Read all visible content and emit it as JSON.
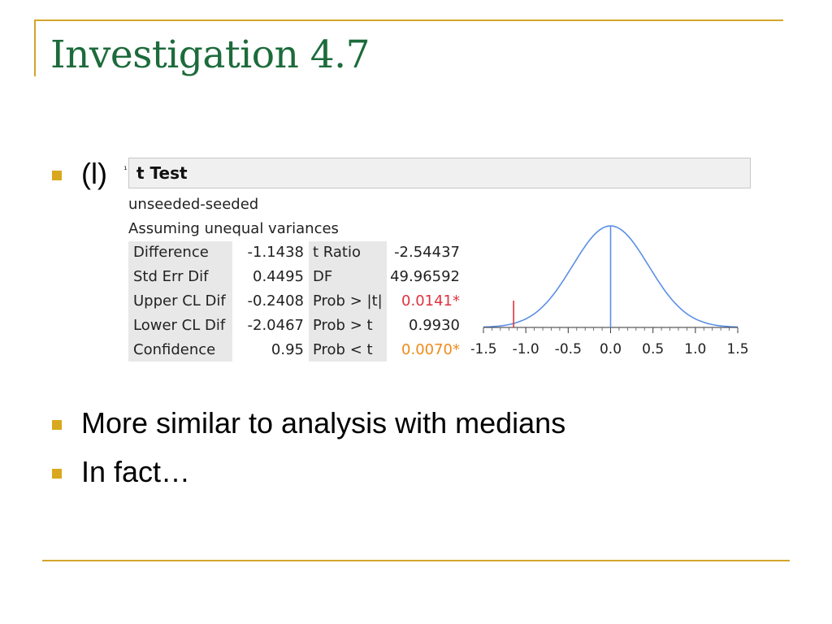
{
  "slide": {
    "title": "Investigation 4.7",
    "bullets": [
      {
        "text": "(l)"
      },
      {
        "text": "More similar to analysis with medians"
      },
      {
        "text": "In fact…"
      }
    ],
    "accent_color": "#d4a52a",
    "title_color": "#1d6b3b"
  },
  "ttest": {
    "header": "t Test",
    "corner_mark": "¹",
    "comparison": "unseeded-seeded",
    "assumption": "Assuming unequal variances",
    "rows": [
      {
        "label": "Difference",
        "value": "-1.1438",
        "label2": "t Ratio",
        "value2": "-2.54437",
        "value2_color": "normal"
      },
      {
        "label": "Std Err Dif",
        "value": "0.4495",
        "label2": "DF",
        "value2": "49.96592",
        "value2_color": "normal"
      },
      {
        "label": "Upper CL Dif",
        "value": "-0.2408",
        "label2": "Prob > |t|",
        "value2": "0.0141*",
        "value2_color": "red"
      },
      {
        "label": "Lower CL Dif",
        "value": "-2.0467",
        "label2": "Prob > t",
        "value2": "0.9930",
        "value2_color": "normal"
      },
      {
        "label": "Confidence",
        "value": "0.95",
        "label2": "Prob < t",
        "value2": "0.0070*",
        "value2_color": "orange"
      }
    ],
    "colors": {
      "red": "#e0323e",
      "orange": "#f08a1a",
      "curve": "#5b8fe6",
      "marker": "#e0323e"
    }
  },
  "chart_data": {
    "type": "line",
    "title": "",
    "xlabel": "",
    "ylabel": "",
    "xlim": [
      -1.5,
      1.5
    ],
    "x_ticks": [
      "-1.5",
      "-1.0",
      "-0.5",
      "0.0",
      "0.5",
      "1.0",
      "1.5"
    ],
    "x_tick_values": [
      -1.5,
      -1.0,
      -0.5,
      0.0,
      0.5,
      1.0,
      1.5
    ],
    "curve": "normal density centered at 0.0 with standard error 0.4495",
    "center_line_x": 0.0,
    "observed_marker_x": -1.1438
  }
}
